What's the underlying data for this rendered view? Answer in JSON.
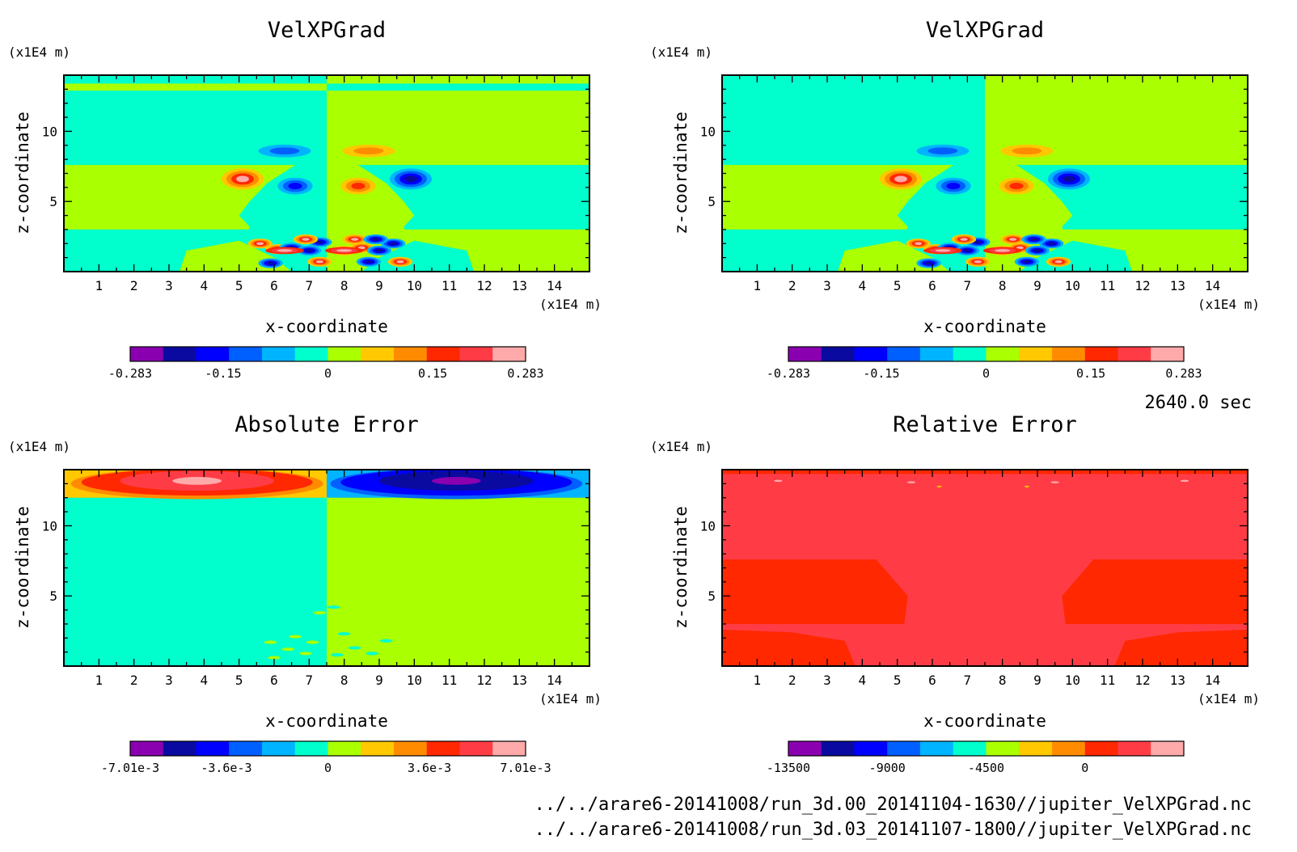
{
  "chart_data": [
    {
      "id": "p1",
      "type": "heatmap",
      "title": "VelXPGrad",
      "xlabel": "x-coordinate",
      "ylabel": "z-coordinate",
      "x_unit": "(x1E4 m)",
      "y_unit": "(x1E4 m)",
      "xlim": [
        0,
        15
      ],
      "ylim": [
        0,
        14
      ],
      "xticks": [
        "1",
        "2",
        "3",
        "4",
        "5",
        "6",
        "7",
        "8",
        "9",
        "10",
        "11",
        "12",
        "13",
        "14"
      ],
      "yticks": [
        "5",
        "10"
      ],
      "colorbar": {
        "colors": [
          "#8a00b0",
          "#0a0aa0",
          "#0000ff",
          "#0060ff",
          "#00b4ff",
          "#00ffcc",
          "#aaff00",
          "#ffc800",
          "#ff8c00",
          "#ff2800",
          "#ff3c46",
          "#ffaaaa"
        ],
        "ticks": [
          {
            "v": -0.283,
            "label": "-0.283"
          },
          {
            "v": -0.15,
            "label": "-0.15"
          },
          {
            "v": 0,
            "label": "0"
          },
          {
            "v": 0.15,
            "label": "0.15"
          },
          {
            "v": 0.283,
            "label": "0.283"
          }
        ],
        "min": -0.283,
        "max": 0.283
      }
    },
    {
      "id": "p2",
      "type": "heatmap",
      "title": "VelXPGrad",
      "xlabel": "x-coordinate",
      "ylabel": "z-coordinate",
      "x_unit": "(x1E4 m)",
      "y_unit": "(x1E4 m)",
      "xlim": [
        0,
        15
      ],
      "ylim": [
        0,
        14
      ],
      "xticks": [
        "1",
        "2",
        "3",
        "4",
        "5",
        "6",
        "7",
        "8",
        "9",
        "10",
        "11",
        "12",
        "13",
        "14"
      ],
      "yticks": [
        "5",
        "10"
      ],
      "colorbar": {
        "colors": [
          "#8a00b0",
          "#0a0aa0",
          "#0000ff",
          "#0060ff",
          "#00b4ff",
          "#00ffcc",
          "#aaff00",
          "#ffc800",
          "#ff8c00",
          "#ff2800",
          "#ff3c46",
          "#ffaaaa"
        ],
        "ticks": [
          {
            "v": -0.283,
            "label": "-0.283"
          },
          {
            "v": -0.15,
            "label": "-0.15"
          },
          {
            "v": 0,
            "label": "0"
          },
          {
            "v": 0.15,
            "label": "0.15"
          },
          {
            "v": 0.283,
            "label": "0.283"
          }
        ],
        "min": -0.283,
        "max": 0.283
      }
    },
    {
      "id": "p3",
      "type": "heatmap",
      "title": "Absolute Error",
      "xlabel": "x-coordinate",
      "ylabel": "z-coordinate",
      "x_unit": "(x1E4 m)",
      "y_unit": "(x1E4 m)",
      "xlim": [
        0,
        15
      ],
      "ylim": [
        0,
        14
      ],
      "xticks": [
        "1",
        "2",
        "3",
        "4",
        "5",
        "6",
        "7",
        "8",
        "9",
        "10",
        "11",
        "12",
        "13",
        "14"
      ],
      "yticks": [
        "5",
        "10"
      ],
      "colorbar": {
        "colors": [
          "#8a00b0",
          "#0a0aa0",
          "#0000ff",
          "#0060ff",
          "#00b4ff",
          "#00ffcc",
          "#aaff00",
          "#ffc800",
          "#ff8c00",
          "#ff2800",
          "#ff3c46",
          "#ffaaaa"
        ],
        "ticks": [
          {
            "v": -0.00701,
            "label": "-7.01e-3"
          },
          {
            "v": -0.0036,
            "label": "-3.6e-3"
          },
          {
            "v": 0,
            "label": "0"
          },
          {
            "v": 0.0036,
            "label": "3.6e-3"
          },
          {
            "v": 0.00701,
            "label": "7.01e-3"
          }
        ],
        "min": -0.00701,
        "max": 0.00701
      }
    },
    {
      "id": "p4",
      "type": "heatmap",
      "title": "Relative Error",
      "xlabel": "x-coordinate",
      "ylabel": "z-coordinate",
      "x_unit": "(x1E4 m)",
      "y_unit": "(x1E4 m)",
      "xlim": [
        0,
        15
      ],
      "ylim": [
        0,
        14
      ],
      "xticks": [
        "1",
        "2",
        "3",
        "4",
        "5",
        "6",
        "7",
        "8",
        "9",
        "10",
        "11",
        "12",
        "13",
        "14"
      ],
      "yticks": [
        "5",
        "10"
      ],
      "colorbar": {
        "colors": [
          "#8a00b0",
          "#0a0aa0",
          "#0000ff",
          "#0060ff",
          "#00b4ff",
          "#00ffcc",
          "#aaff00",
          "#ffc800",
          "#ff8c00",
          "#ff2800",
          "#ff3c46",
          "#ffaaaa"
        ],
        "ticks": [
          {
            "v": -13500,
            "label": "-13500"
          },
          {
            "v": -9000,
            "label": "-9000"
          },
          {
            "v": -4500,
            "label": "-4500"
          },
          {
            "v": 0,
            "label": "0"
          }
        ],
        "min": -13500,
        "max": 4500
      }
    }
  ],
  "info": {
    "time": "2640.0 sec",
    "file1": "../../arare6-20141008/run_3d.00_20141104-1630//jupiter_VelXPGrad.nc",
    "file2": "../../arare6-20141008/run_3d.03_20141107-1800//jupiter_VelXPGrad.nc"
  },
  "palette": {
    "purple": "#8a00b0",
    "navy": "#0a0aa0",
    "blue": "#0000ff",
    "midblue": "#0060ff",
    "sky": "#00b4ff",
    "cyan": "#00ffcc",
    "lime": "#aaff00",
    "gold": "#ffc800",
    "orange": "#ff8c00",
    "red": "#ff2800",
    "redpink": "#ff3c46",
    "pink": "#ffaaaa"
  }
}
